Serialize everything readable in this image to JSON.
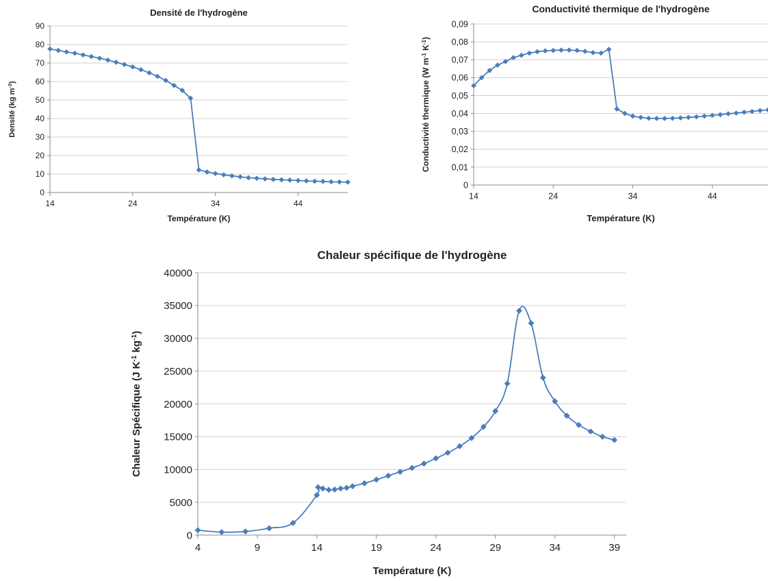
{
  "colors": {
    "series": "#4a7ebb",
    "grid": "#d0d0d0",
    "axis": "#888888",
    "text": "#222222"
  },
  "chart_data": [
    {
      "id": "density",
      "type": "line",
      "marker": "diamond",
      "title": "Densité de l'hydrogène",
      "xlabel": "Température (K)",
      "ylabel": "Densité (kg m",
      "ylabel_sup": "-3",
      "ylabel_tail": ")",
      "xlim": [
        14,
        50
      ],
      "ylim": [
        0,
        90
      ],
      "xticks": [
        14,
        24,
        34,
        44
      ],
      "xtick_labels": [
        "14",
        "24",
        "34",
        "44"
      ],
      "yticks": [
        0,
        10,
        20,
        30,
        40,
        50,
        60,
        70,
        80,
        90
      ],
      "ytick_labels": [
        "0",
        "10",
        "20",
        "30",
        "40",
        "50",
        "60",
        "70",
        "80",
        "90"
      ],
      "grid": "horizontal",
      "x": [
        14,
        15,
        16,
        17,
        18,
        19,
        20,
        21,
        22,
        23,
        24,
        25,
        26,
        27,
        28,
        29,
        30,
        31,
        32,
        33,
        34,
        35,
        36,
        37,
        38,
        39,
        40,
        41,
        42,
        43,
        44,
        45,
        46,
        47,
        48,
        49,
        50
      ],
      "y": [
        77.6,
        76.8,
        76.0,
        75.3,
        74.4,
        73.5,
        72.6,
        71.6,
        70.4,
        69.2,
        67.9,
        66.4,
        64.7,
        62.8,
        60.6,
        57.9,
        55.2,
        51.0,
        12.2,
        11.1,
        10.3,
        9.6,
        9.0,
        8.5,
        8.0,
        7.7,
        7.4,
        7.1,
        6.9,
        6.7,
        6.5,
        6.3,
        6.1,
        6.0,
        5.8,
        5.7,
        5.6
      ]
    },
    {
      "id": "conductivity",
      "type": "line",
      "marker": "diamond",
      "title": "Conductivité thermique de l'hydrogène",
      "xlabel": "Température (K)",
      "ylabel": "Conductivité thermique (W m",
      "ylabel_sup": "-1",
      "ylabel_mid": " K",
      "ylabel_sup2": "-1",
      "ylabel_tail": ")",
      "xlim": [
        14,
        51
      ],
      "ylim": [
        0,
        0.09
      ],
      "xticks": [
        14,
        24,
        34,
        44
      ],
      "xtick_labels": [
        "14",
        "24",
        "34",
        "44"
      ],
      "yticks": [
        0,
        0.01,
        0.02,
        0.03,
        0.04,
        0.05,
        0.06,
        0.07,
        0.08,
        0.09
      ],
      "ytick_labels": [
        "0",
        "0,01",
        "0,02",
        "0,03",
        "0,04",
        "0,05",
        "0,06",
        "0,07",
        "0,08",
        "0,09"
      ],
      "grid": "horizontal",
      "x": [
        14,
        15,
        16,
        17,
        18,
        19,
        20,
        21,
        22,
        23,
        24,
        25,
        26,
        27,
        28,
        29,
        30,
        31,
        32,
        33,
        34,
        35,
        36,
        37,
        38,
        39,
        40,
        41,
        42,
        43,
        44,
        45,
        46,
        47,
        48,
        49,
        50,
        51
      ],
      "y": [
        0.0555,
        0.06,
        0.064,
        0.067,
        0.069,
        0.0712,
        0.0725,
        0.0737,
        0.0745,
        0.075,
        0.0752,
        0.0754,
        0.0754,
        0.0752,
        0.0747,
        0.074,
        0.0737,
        0.0758,
        0.0425,
        0.04,
        0.0385,
        0.0378,
        0.0373,
        0.0372,
        0.0372,
        0.0373,
        0.0375,
        0.0378,
        0.0381,
        0.0385,
        0.0389,
        0.0393,
        0.0398,
        0.0402,
        0.0407,
        0.0411,
        0.0416,
        0.042
      ]
    },
    {
      "id": "heat",
      "type": "line",
      "marker": "diamond",
      "smooth": true,
      "title": "Chaleur spécifique de l'hydrogène",
      "xlabel": "Température (K)",
      "ylabel": "Chaleur Spécifique (J K",
      "ylabel_sup": "-1",
      "ylabel_mid": " kg",
      "ylabel_sup2": "-1",
      "ylabel_tail": ")",
      "xlim": [
        4,
        40
      ],
      "ylim": [
        0,
        40000
      ],
      "xticks": [
        4,
        9,
        14,
        19,
        24,
        29,
        34,
        39
      ],
      "xtick_labels": [
        "4",
        "9",
        "14",
        "19",
        "24",
        "29",
        "34",
        "39"
      ],
      "yticks": [
        0,
        5000,
        10000,
        15000,
        20000,
        25000,
        30000,
        35000,
        40000
      ],
      "ytick_labels": [
        "0",
        "5000",
        "10000",
        "15000",
        "20000",
        "25000",
        "30000",
        "35000",
        "40000"
      ],
      "grid": "horizontal",
      "x": [
        4,
        6,
        8,
        10,
        12,
        14,
        14.1,
        14.5,
        15,
        15.5,
        16,
        16.5,
        17,
        18,
        19,
        20,
        21,
        22,
        23,
        24,
        25,
        26,
        27,
        28,
        29,
        30,
        31,
        32,
        33,
        34,
        35,
        36,
        37,
        38,
        39
      ],
      "y": [
        750,
        450,
        550,
        1050,
        1850,
        6100,
        7300,
        7100,
        6900,
        6950,
        7100,
        7200,
        7450,
        7900,
        8450,
        9050,
        9650,
        10250,
        10900,
        11700,
        12550,
        13550,
        14800,
        16500,
        18900,
        23100,
        34200,
        32300,
        24000,
        20400,
        18200,
        16800,
        15800,
        15000,
        14500
      ]
    }
  ]
}
